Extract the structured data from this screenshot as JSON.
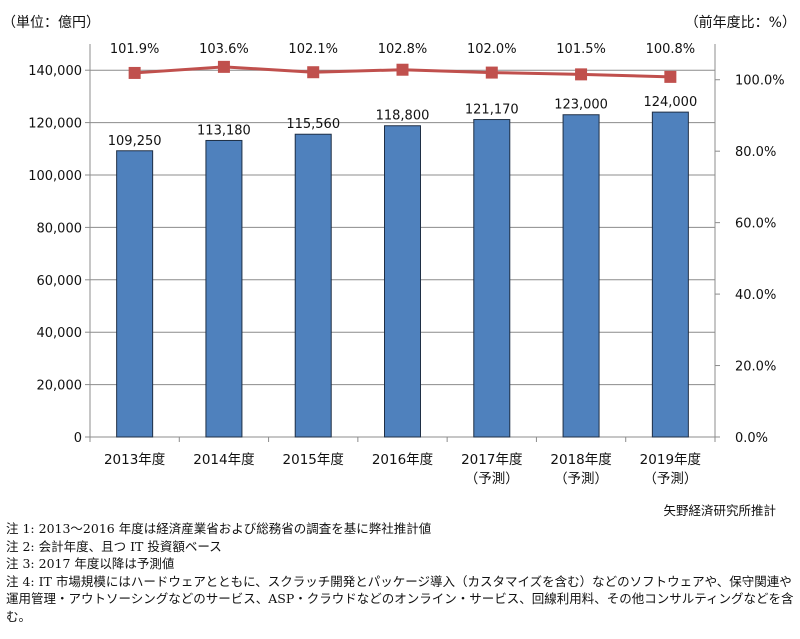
{
  "chart_data": {
    "type": "bar+line",
    "left_unit": "（単位：億円）",
    "right_unit": "（前年度比：%）",
    "categories": [
      [
        "2013年度"
      ],
      [
        "2014年度"
      ],
      [
        "2015年度"
      ],
      [
        "2016年度"
      ],
      [
        "2017年度",
        "（予測）"
      ],
      [
        "2018年度",
        "（予測）"
      ],
      [
        "2019年度",
        "（予測）"
      ]
    ],
    "bar_series": {
      "values": [
        109250,
        113180,
        115560,
        118800,
        121170,
        123000,
        124000
      ],
      "labels": [
        "109,250",
        "113,180",
        "115,560",
        "118,800",
        "121,170",
        "123,000",
        "124,000"
      ],
      "color": "#4f81bd"
    },
    "line_series": {
      "values": [
        101.9,
        103.6,
        102.1,
        102.8,
        102.0,
        101.5,
        100.8
      ],
      "labels": [
        "101.9%",
        "103.6%",
        "102.1%",
        "102.8%",
        "102.0%",
        "101.5%",
        "100.8%"
      ],
      "color": "#c0504d"
    },
    "left_axis": {
      "ylim": [
        0,
        150000
      ],
      "ticks": [
        0,
        20000,
        40000,
        60000,
        80000,
        100000,
        120000,
        140000
      ],
      "tick_labels": [
        "0",
        "20,000",
        "40,000",
        "60,000",
        "80,000",
        "100,000",
        "120,000",
        "140,000"
      ]
    },
    "right_axis": {
      "ylim": [
        0,
        110
      ],
      "ticks": [
        0,
        20,
        40,
        60,
        80,
        100
      ],
      "tick_labels": [
        "0.0%",
        "20.0%",
        "40.0%",
        "60.0%",
        "80.0%",
        "100.0%"
      ]
    },
    "grid": "horizontal"
  },
  "source": "矢野経済研究所推計",
  "notes": [
    "注 1: 2013～2016 年度は経済産業省および総務省の調査を基に弊社推計値",
    "注 2:  会計年度、且つ IT 投資額ベース",
    "注 3: 2017 年度以降は予測値",
    "注 4:  IT 市場規模にはハードウェアとともに、スクラッチ開発とパッケージ導入（カスタマイズを含む）などのソフトウェアや、保守関連や運用管理・アウトソーシングなどのサービス、ASP・クラウドなどのオンライン・サービス、回線利用料、その他コンサルティングなどを含む。"
  ]
}
